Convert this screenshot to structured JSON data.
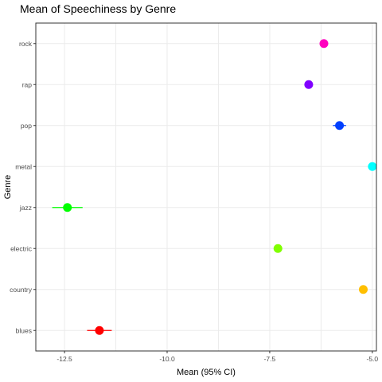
{
  "chart_data": {
    "type": "scatter",
    "title": "Mean of Speechiness by Genre",
    "xlabel": "Mean (95% CI)",
    "ylabel": "Genre",
    "xlim": [
      -13.2,
      -4.9
    ],
    "x_ticks": [
      -12.5,
      -10.0,
      -7.5,
      -5.0
    ],
    "x_tick_labels": [
      "-12.5",
      "-10.0",
      "-7.5",
      "-5.0"
    ],
    "grid": true,
    "categories": [
      "blues",
      "country",
      "electric",
      "jazz",
      "metal",
      "pop",
      "rap",
      "rock"
    ],
    "points": [
      {
        "genre": "blues",
        "mean": -11.65,
        "ci_low": -11.95,
        "ci_high": -11.35,
        "color": "#ff0000"
      },
      {
        "genre": "country",
        "mean": -5.22,
        "ci_low": -5.3,
        "ci_high": -5.14,
        "color": "#ffbf00"
      },
      {
        "genre": "electric",
        "mean": -7.3,
        "ci_low": -7.36,
        "ci_high": -7.24,
        "color": "#80ff00"
      },
      {
        "genre": "jazz",
        "mean": -12.43,
        "ci_low": -12.8,
        "ci_high": -12.06,
        "color": "#00ff00"
      },
      {
        "genre": "metal",
        "mean": -5.0,
        "ci_low": -5.05,
        "ci_high": -4.95,
        "color": "#00ffff"
      },
      {
        "genre": "pop",
        "mean": -5.8,
        "ci_low": -5.96,
        "ci_high": -5.64,
        "color": "#0040ff"
      },
      {
        "genre": "rap",
        "mean": -6.55,
        "ci_low": -6.63,
        "ci_high": -6.47,
        "color": "#8000ff"
      },
      {
        "genre": "rock",
        "mean": -6.18,
        "ci_low": -6.26,
        "ci_high": -6.1,
        "color": "#ff00bf"
      }
    ]
  }
}
